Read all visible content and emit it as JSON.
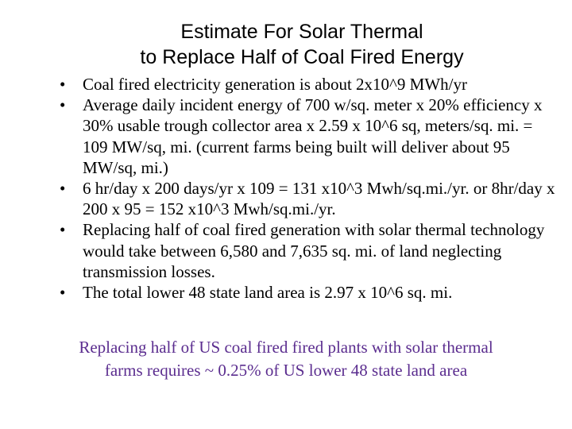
{
  "title": {
    "line1": "Estimate For Solar Thermal",
    "line2": "to Replace Half of Coal Fired Energy"
  },
  "bullet_symbol": "•",
  "bullets": [
    "Coal fired electricity generation is about 2x10^9 MWh/yr",
    "Average daily incident energy of  700 w/sq. meter x 20% efficiency x 30% usable trough collector area x 2.59 x 10^6 sq, meters/sq. mi. = 109 MW/sq, mi. (current farms being built will deliver about 95 MW/sq, mi.)",
    "6 hr/day x 200 days/yr x 109 =  131 x10^3 Mwh/sq.mi./yr. or 8hr/day x 200 x 95 = 152 x10^3 Mwh/sq.mi./yr.",
    "Replacing half of coal fired generation with solar thermal technology would take between 6,580 and 7,635 sq. mi. of land neglecting transmission losses.",
    "The total lower 48 state land area is 2.97 x 10^6 sq. mi."
  ],
  "conclusion": {
    "line1": "Replacing half of US coal fired fired plants with solar thermal",
    "line2": "farms requires ~ 0.25% of US lower 48 state land area"
  },
  "colors": {
    "text": "#000000",
    "conclusion": "#5b2d8f",
    "background": "#ffffff"
  }
}
